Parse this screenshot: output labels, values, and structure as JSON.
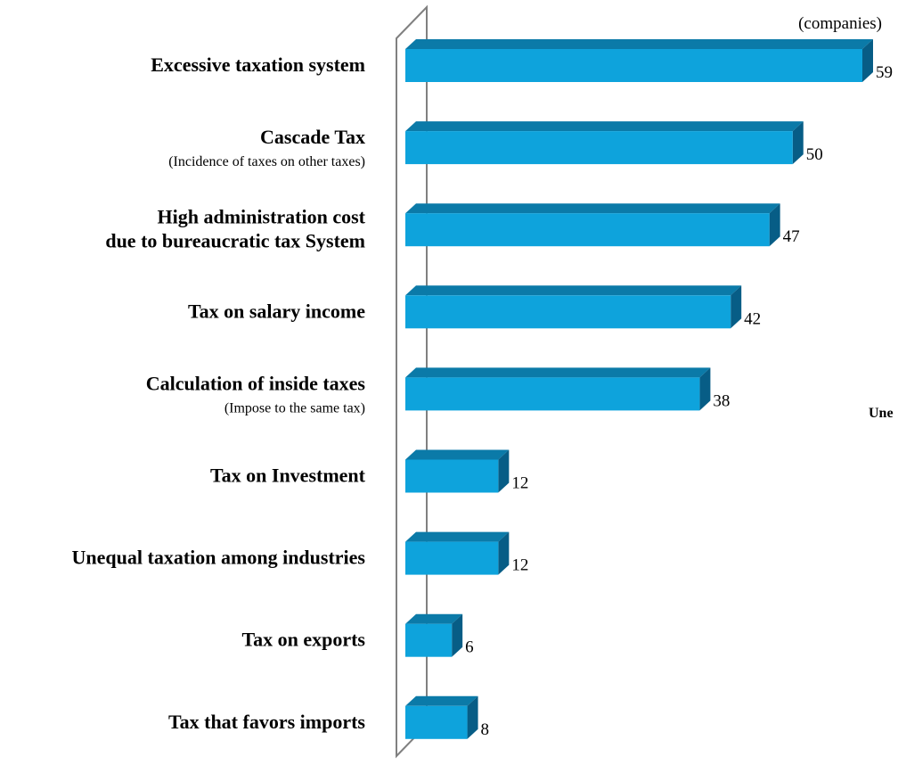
{
  "chart_data": {
    "type": "bar",
    "orientation": "horizontal",
    "unit_label": "(companies)",
    "categories": [
      {
        "label": [
          "Excessive taxation system"
        ],
        "note": ""
      },
      {
        "label": [
          "Cascade Tax"
        ],
        "note": "(Incidence of taxes on other taxes)"
      },
      {
        "label": [
          "High administration cost",
          "due to bureaucratic tax System"
        ],
        "note": ""
      },
      {
        "label": [
          "Tax on salary income"
        ],
        "note": ""
      },
      {
        "label": [
          "Calculation of inside taxes"
        ],
        "note": "(Impose to the same tax)"
      },
      {
        "label": [
          "Tax on Investment"
        ],
        "note": ""
      },
      {
        "label": [
          "Unequal taxation among industries"
        ],
        "note": ""
      },
      {
        "label": [
          "Tax on exports"
        ],
        "note": ""
      },
      {
        "label": [
          "Tax that favors imports"
        ],
        "note": ""
      }
    ],
    "values": [
      59,
      50,
      47,
      42,
      38,
      12,
      12,
      6,
      8
    ],
    "xlim": [
      0,
      59
    ],
    "grid": false,
    "legend": "none",
    "bar_color": "#0ea3dc",
    "bar_top_color": "#0b7aa8",
    "bar_side_color": "#075d86",
    "wall_color": "#808080",
    "clipped_edge_text": "Une"
  }
}
